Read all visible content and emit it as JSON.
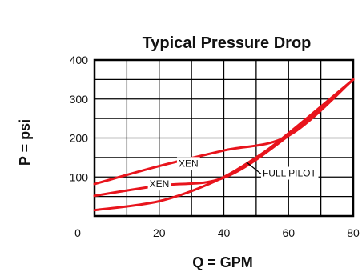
{
  "chart_data": {
    "type": "line",
    "title": "Typical Pressure Drop",
    "xlabel": "Q = GPM",
    "ylabel": "P = psi",
    "xlim": [
      0,
      80
    ],
    "ylim": [
      0,
      400
    ],
    "x_ticks": [
      20,
      40,
      60,
      80
    ],
    "y_ticks": [
      100,
      200,
      300,
      400
    ],
    "origin_label": "0",
    "grid": true,
    "colors": {
      "series": "#e8141c",
      "grid": "#000000"
    },
    "series": [
      {
        "values_xy": [
          [
            0,
            82
          ],
          [
            20,
            128
          ],
          [
            40,
            168
          ],
          [
            60,
            206
          ],
          [
            80,
            350
          ]
        ]
      },
      {
        "values_xy": [
          [
            0,
            52
          ],
          [
            20,
            78
          ],
          [
            40,
            98
          ],
          [
            60,
            206
          ],
          [
            80,
            350
          ]
        ]
      },
      {
        "values_xy": [
          [
            0,
            15
          ],
          [
            20,
            38
          ],
          [
            37,
            88
          ],
          [
            50,
            150
          ],
          [
            60,
            212
          ],
          [
            80,
            350
          ]
        ]
      }
    ],
    "annotations": [
      {
        "text": "XEN",
        "x": 26,
        "y": 133
      },
      {
        "text": "XEN",
        "x": 17,
        "y": 80
      },
      {
        "text": "FULL PILOT",
        "x": 52,
        "y": 108,
        "arrow_to": [
          47,
          138
        ]
      }
    ]
  }
}
